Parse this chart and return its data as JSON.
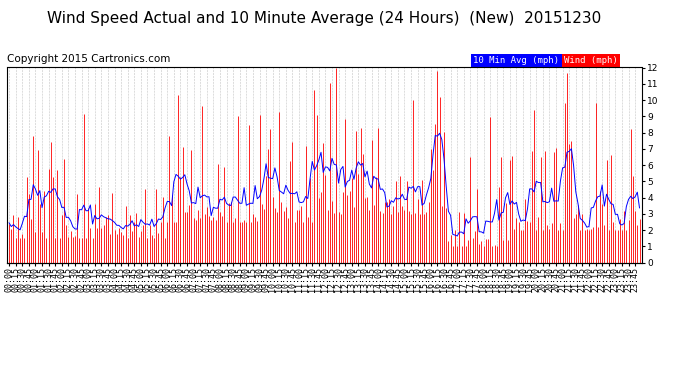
{
  "title": "Wind Speed Actual and 10 Minute Average (24 Hours)  (New)  20151230",
  "copyright": "Copyright 2015 Cartronics.com",
  "legend_blue_label": "10 Min Avg (mph)",
  "legend_red_label": "Wind (mph)",
  "ylim": [
    0.0,
    12.0
  ],
  "yticks": [
    0.0,
    1.0,
    2.0,
    3.0,
    4.0,
    5.0,
    6.0,
    7.0,
    8.0,
    9.0,
    10.0,
    11.0,
    12.0
  ],
  "background_color": "#ffffff",
  "plot_bg_color": "#ffffff",
  "grid_color": "#aaaaaa",
  "bar_color": "#ff0000",
  "line_color": "#0000ff",
  "title_fontsize": 11,
  "copyright_fontsize": 7.5,
  "tick_fontsize": 6.5,
  "num_points": 288,
  "seed": 99
}
